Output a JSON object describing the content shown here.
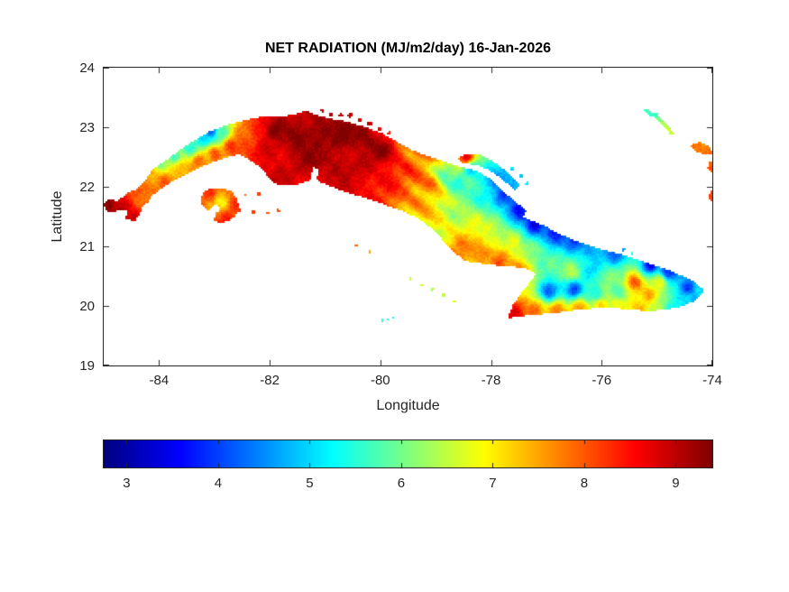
{
  "chart_data": {
    "type": "heatmap",
    "title": "NET RADIATION (MJ/m2/day) 16-Jan-2026",
    "variable": "NET RADIATION",
    "units": "MJ/m2/day",
    "date": "16-Jan-2026",
    "region": "Cuba",
    "xlabel": "Longitude",
    "ylabel": "Latitude",
    "xlim": [
      -85,
      -74
    ],
    "ylim": [
      19,
      24
    ],
    "xticks": [
      -84,
      -82,
      -80,
      -78,
      -76,
      -74
    ],
    "yticks": [
      19,
      20,
      21,
      22,
      23,
      24
    ],
    "grid": false,
    "colormap": "jet",
    "axis_color": "#262626",
    "text_color": "#262626",
    "background": "#ffffff",
    "colorbar": {
      "orientation": "horizontal",
      "ticks": [
        3,
        4,
        5,
        6,
        7,
        8,
        9
      ],
      "range": [
        2.75,
        9.4
      ]
    },
    "regions": {
      "main_island": [
        [
          -85.0,
          21.7
        ],
        [
          -84.9,
          21.78
        ],
        [
          -84.75,
          21.76
        ],
        [
          -84.55,
          21.9
        ],
        [
          -84.4,
          21.95
        ],
        [
          -84.25,
          22.1
        ],
        [
          -84.1,
          22.3
        ],
        [
          -83.9,
          22.42
        ],
        [
          -83.65,
          22.6
        ],
        [
          -83.4,
          22.75
        ],
        [
          -83.1,
          22.92
        ],
        [
          -82.8,
          23.02
        ],
        [
          -82.5,
          23.1
        ],
        [
          -82.2,
          23.16
        ],
        [
          -81.9,
          23.16
        ],
        [
          -81.6,
          23.2
        ],
        [
          -81.35,
          23.27
        ],
        [
          -81.15,
          23.2
        ],
        [
          -80.9,
          23.14
        ],
        [
          -80.6,
          23.08
        ],
        [
          -80.3,
          23.0
        ],
        [
          -80.0,
          22.9
        ],
        [
          -79.7,
          22.74
        ],
        [
          -79.4,
          22.6
        ],
        [
          -79.1,
          22.5
        ],
        [
          -78.8,
          22.4
        ],
        [
          -78.5,
          22.32
        ],
        [
          -78.25,
          22.26
        ],
        [
          -78.0,
          22.12
        ],
        [
          -77.85,
          21.98
        ],
        [
          -77.65,
          21.82
        ],
        [
          -77.5,
          21.7
        ],
        [
          -77.35,
          21.6
        ],
        [
          -77.42,
          21.5
        ],
        [
          -77.25,
          21.42
        ],
        [
          -77.05,
          21.35
        ],
        [
          -76.8,
          21.22
        ],
        [
          -76.5,
          21.1
        ],
        [
          -76.2,
          21.0
        ],
        [
          -75.9,
          20.92
        ],
        [
          -75.6,
          20.85
        ],
        [
          -75.3,
          20.76
        ],
        [
          -75.05,
          20.68
        ],
        [
          -74.8,
          20.6
        ],
        [
          -74.55,
          20.5
        ],
        [
          -74.35,
          20.42
        ],
        [
          -74.15,
          20.26
        ],
        [
          -74.3,
          20.1
        ],
        [
          -74.55,
          20.0
        ],
        [
          -74.85,
          19.95
        ],
        [
          -75.15,
          19.92
        ],
        [
          -75.45,
          19.95
        ],
        [
          -75.75,
          19.97
        ],
        [
          -76.1,
          19.97
        ],
        [
          -76.5,
          19.93
        ],
        [
          -76.9,
          19.88
        ],
        [
          -77.25,
          19.86
        ],
        [
          -77.55,
          19.82
        ],
        [
          -77.68,
          19.8
        ],
        [
          -77.6,
          20.0
        ],
        [
          -77.45,
          20.2
        ],
        [
          -77.3,
          20.38
        ],
        [
          -77.18,
          20.52
        ],
        [
          -77.3,
          20.62
        ],
        [
          -77.55,
          20.66
        ],
        [
          -77.85,
          20.68
        ],
        [
          -78.15,
          20.72
        ],
        [
          -78.45,
          20.76
        ],
        [
          -78.65,
          20.9
        ],
        [
          -78.85,
          21.1
        ],
        [
          -79.05,
          21.3
        ],
        [
          -79.3,
          21.48
        ],
        [
          -79.6,
          21.6
        ],
        [
          -79.9,
          21.7
        ],
        [
          -80.2,
          21.8
        ],
        [
          -80.5,
          21.88
        ],
        [
          -80.8,
          21.98
        ],
        [
          -81.05,
          22.07
        ],
        [
          -81.15,
          22.12
        ],
        [
          -81.1,
          22.3
        ],
        [
          -81.22,
          22.33
        ],
        [
          -81.28,
          22.12
        ],
        [
          -81.55,
          22.03
        ],
        [
          -81.85,
          22.03
        ],
        [
          -82.0,
          22.12
        ],
        [
          -82.1,
          22.28
        ],
        [
          -82.3,
          22.42
        ],
        [
          -82.55,
          22.55
        ],
        [
          -82.8,
          22.5
        ],
        [
          -83.05,
          22.42
        ],
        [
          -83.3,
          22.32
        ],
        [
          -83.55,
          22.2
        ],
        [
          -83.8,
          22.08
        ],
        [
          -84.0,
          21.95
        ],
        [
          -84.15,
          21.85
        ],
        [
          -84.2,
          21.75
        ],
        [
          -84.3,
          21.7
        ],
        [
          -84.35,
          21.55
        ],
        [
          -84.45,
          21.42
        ],
        [
          -84.6,
          21.48
        ],
        [
          -84.55,
          21.62
        ],
        [
          -84.68,
          21.63
        ],
        [
          -84.8,
          21.58
        ],
        [
          -84.93,
          21.6
        ]
      ],
      "isla_juventud": [
        [
          -83.25,
          21.75
        ],
        [
          -83.2,
          21.9
        ],
        [
          -83.05,
          21.97
        ],
        [
          -82.85,
          21.98
        ],
        [
          -82.7,
          21.92
        ],
        [
          -82.6,
          21.8
        ],
        [
          -82.57,
          21.65
        ],
        [
          -82.63,
          21.5
        ],
        [
          -82.8,
          21.42
        ],
        [
          -82.92,
          21.4
        ],
        [
          -83.0,
          21.44
        ],
        [
          -82.98,
          21.55
        ],
        [
          -82.88,
          21.6
        ],
        [
          -82.95,
          21.73
        ],
        [
          -83.13,
          21.6
        ]
      ],
      "cayo_coco_chain": [
        [
          -78.6,
          22.48
        ],
        [
          -78.4,
          22.55
        ],
        [
          -78.15,
          22.52
        ],
        [
          -77.95,
          22.42
        ],
        [
          -77.78,
          22.3
        ],
        [
          -77.62,
          22.16
        ],
        [
          -77.48,
          22.02
        ],
        [
          -77.56,
          21.95
        ],
        [
          -77.7,
          22.06
        ],
        [
          -77.86,
          22.18
        ],
        [
          -78.05,
          22.3
        ],
        [
          -78.28,
          22.38
        ],
        [
          -78.5,
          22.4
        ]
      ],
      "crooked_island": [
        [
          -74.4,
          22.7
        ],
        [
          -74.22,
          22.74
        ],
        [
          -74.05,
          22.66
        ],
        [
          -73.98,
          22.54
        ],
        [
          -74.15,
          22.55
        ],
        [
          -74.3,
          22.6
        ]
      ],
      "acklins": [
        [
          -74.05,
          22.45
        ],
        [
          -73.98,
          22.34
        ],
        [
          -73.97,
          22.2
        ],
        [
          -74.08,
          22.3
        ]
      ],
      "acklins_south": [
        [
          -74.02,
          21.95
        ],
        [
          -73.97,
          21.85
        ],
        [
          -73.98,
          21.72
        ],
        [
          -74.06,
          21.82
        ]
      ]
    },
    "island_paths": [
      {
        "name": "long-island-bahamas",
        "width": 1.6,
        "points": [
          [
            -75.2,
            23.28
          ],
          [
            -75.05,
            23.2
          ],
          [
            -74.92,
            23.1
          ],
          [
            -74.82,
            23.0
          ],
          [
            -74.73,
            22.9
          ]
        ]
      },
      {
        "name": "long-island-branch",
        "width": 1.1,
        "points": [
          [
            -75.12,
            23.22
          ],
          [
            -74.98,
            23.22
          ]
        ]
      }
    ],
    "dot_cays": [
      [
        -81.05,
        23.28,
        0.8
      ],
      [
        -80.9,
        23.22,
        1.0
      ],
      [
        -80.72,
        23.2,
        0.8
      ],
      [
        -80.55,
        23.2,
        1.1
      ],
      [
        -80.38,
        23.12,
        0.9
      ],
      [
        -80.2,
        23.06,
        1.0
      ],
      [
        -80.02,
        22.98,
        0.9
      ],
      [
        -79.85,
        22.9,
        0.8
      ],
      [
        -82.55,
        21.6,
        0.8
      ],
      [
        -82.3,
        21.58,
        0.8
      ],
      [
        -82.05,
        21.56,
        0.8
      ],
      [
        -81.85,
        21.6,
        0.8
      ],
      [
        -82.45,
        21.86,
        0.7
      ],
      [
        -82.2,
        21.88,
        0.7
      ],
      [
        -79.45,
        20.45,
        0.7
      ],
      [
        -79.25,
        20.35,
        0.8
      ],
      [
        -79.05,
        20.28,
        0.7
      ],
      [
        -78.85,
        20.18,
        0.8
      ],
      [
        -78.65,
        20.08,
        0.7
      ],
      [
        -80.45,
        21.02,
        0.7
      ],
      [
        -80.2,
        20.92,
        0.7
      ],
      [
        -79.97,
        19.75,
        0.7
      ],
      [
        -79.87,
        19.77,
        0.7
      ],
      [
        -79.77,
        19.8,
        0.7
      ],
      [
        -77.62,
        22.3,
        0.9
      ],
      [
        -77.45,
        22.18,
        0.8
      ],
      [
        -77.35,
        22.05,
        0.8
      ],
      [
        -75.6,
        20.95,
        0.8
      ],
      [
        -75.45,
        20.88,
        0.7
      ]
    ],
    "samples": [
      [
        -84.97,
        21.7,
        9.2
      ],
      [
        -84.75,
        21.62,
        8.9
      ],
      [
        -84.45,
        21.45,
        8.9
      ],
      [
        -84.3,
        21.85,
        7.9
      ],
      [
        -84.15,
        22.18,
        7.3
      ],
      [
        -83.88,
        22.08,
        8.0
      ],
      [
        -83.98,
        22.4,
        6.1
      ],
      [
        -83.72,
        22.52,
        5.6
      ],
      [
        -83.45,
        22.65,
        5.3
      ],
      [
        -83.18,
        22.82,
        4.9
      ],
      [
        -83.05,
        22.93,
        4.1
      ],
      [
        -82.88,
        22.9,
        5.6
      ],
      [
        -83.58,
        22.28,
        7.5
      ],
      [
        -83.28,
        22.42,
        7.9
      ],
      [
        -83.0,
        22.55,
        8.2
      ],
      [
        -82.7,
        22.68,
        8.3
      ],
      [
        -82.45,
        22.88,
        8.1
      ],
      [
        -82.2,
        23.02,
        8.6
      ],
      [
        -83.5,
        22.05,
        8.3
      ],
      [
        -82.88,
        21.75,
        7.0
      ],
      [
        -83.1,
        21.88,
        8.2
      ],
      [
        -82.63,
        21.72,
        8.2
      ],
      [
        -82.82,
        21.45,
        8.4
      ],
      [
        -82.0,
        22.6,
        9.0
      ],
      [
        -81.9,
        22.95,
        9.3
      ],
      [
        -81.5,
        22.8,
        9.4
      ],
      [
        -81.1,
        22.95,
        9.4
      ],
      [
        -80.7,
        22.8,
        9.4
      ],
      [
        -80.3,
        22.85,
        9.3
      ],
      [
        -81.3,
        22.45,
        9.2
      ],
      [
        -80.8,
        22.35,
        9.1
      ],
      [
        -81.8,
        22.25,
        8.9
      ],
      [
        -80.35,
        22.4,
        9.0
      ],
      [
        -80.0,
        22.62,
        9.2
      ],
      [
        -79.9,
        22.15,
        8.7
      ],
      [
        -80.3,
        21.95,
        8.6
      ],
      [
        -80.7,
        22.05,
        8.8
      ],
      [
        -79.55,
        22.35,
        8.2
      ],
      [
        -79.3,
        22.55,
        8.0
      ],
      [
        -79.1,
        22.05,
        7.7
      ],
      [
        -79.35,
        21.85,
        7.6
      ],
      [
        -78.8,
        22.28,
        6.0
      ],
      [
        -78.55,
        22.08,
        5.5
      ],
      [
        -78.35,
        22.28,
        5.0
      ],
      [
        -78.15,
        21.9,
        5.3
      ],
      [
        -77.95,
        22.12,
        4.4
      ],
      [
        -77.75,
        21.85,
        3.9
      ],
      [
        -77.5,
        21.6,
        3.5
      ],
      [
        -77.2,
        21.35,
        3.4
      ],
      [
        -76.85,
        21.2,
        3.7
      ],
      [
        -76.5,
        21.08,
        4.1
      ],
      [
        -76.15,
        20.98,
        4.6
      ],
      [
        -75.75,
        20.88,
        4.2
      ],
      [
        -78.45,
        22.5,
        8.8
      ],
      [
        -77.55,
        22.12,
        5.0
      ],
      [
        -78.6,
        21.6,
        6.3
      ],
      [
        -78.3,
        21.42,
        6.8
      ],
      [
        -78.0,
        21.28,
        6.6
      ],
      [
        -78.55,
        20.95,
        7.9
      ],
      [
        -78.2,
        20.85,
        7.8
      ],
      [
        -77.85,
        20.75,
        7.9
      ],
      [
        -77.45,
        20.6,
        7.7
      ],
      [
        -77.6,
        21.1,
        6.9
      ],
      [
        -77.25,
        20.9,
        6.2
      ],
      [
        -76.9,
        20.72,
        6.0
      ],
      [
        -76.55,
        20.55,
        6.4
      ],
      [
        -76.95,
        20.25,
        4.0
      ],
      [
        -76.5,
        20.28,
        4.2
      ],
      [
        -76.1,
        20.2,
        5.3
      ],
      [
        -76.2,
        20.6,
        5.0
      ],
      [
        -75.85,
        20.5,
        6.1
      ],
      [
        -75.4,
        20.38,
        8.2
      ],
      [
        -75.15,
        20.2,
        7.7
      ],
      [
        -74.95,
        20.42,
        6.8
      ],
      [
        -75.12,
        20.68,
        3.5
      ],
      [
        -74.8,
        20.55,
        3.9
      ],
      [
        -74.45,
        20.3,
        4.0
      ],
      [
        -74.45,
        20.12,
        4.9
      ],
      [
        -74.18,
        20.25,
        5.3
      ],
      [
        -75.7,
        20.25,
        5.6
      ],
      [
        -77.55,
        19.88,
        8.6
      ],
      [
        -77.2,
        19.9,
        8.0
      ],
      [
        -76.8,
        19.92,
        7.8
      ],
      [
        -76.4,
        19.97,
        7.5
      ],
      [
        -76.0,
        20.0,
        7.2
      ],
      [
        -75.65,
        20.0,
        6.9
      ],
      [
        -75.35,
        19.95,
        7.3
      ],
      [
        -75.0,
        19.97,
        6.5
      ],
      [
        -74.7,
        20.0,
        5.4
      ],
      [
        -75.15,
        23.22,
        5.6
      ],
      [
        -74.8,
        22.95,
        6.3
      ],
      [
        -74.25,
        22.65,
        7.7
      ],
      [
        -74.02,
        22.3,
        7.9
      ],
      [
        -74.0,
        21.85,
        8.1
      ],
      [
        -79.85,
        19.78,
        5.3
      ]
    ],
    "banding": {
      "center_lon": -79.25,
      "sigma": 0.7,
      "wavelength": 0.42,
      "amplitude": 0.45,
      "normal": [
        0.55,
        0.835
      ]
    },
    "noise": {
      "speckle": 0.16,
      "smooth": 0.2,
      "medium": 0.12
    }
  }
}
